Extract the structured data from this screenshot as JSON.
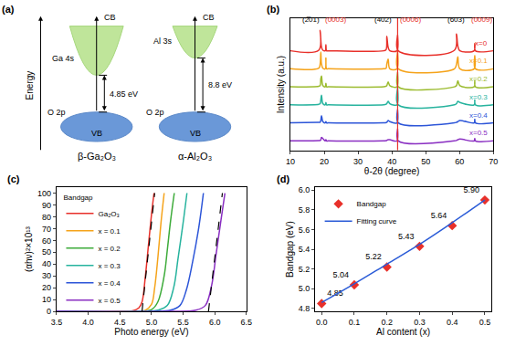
{
  "diagram": {
    "panel": "(a)",
    "axis_label": "Energy",
    "materials": [
      {
        "name": "β-Ga₂O₃",
        "cb": "CB",
        "vb": "VB",
        "cb_orbital": "Ga 4s",
        "vb_orbital": "O 2p",
        "gap": "4.85 eV"
      },
      {
        "name": "α-Al₂O₃",
        "cb": "CB",
        "vb": "VB",
        "cb_orbital": "Al 3s",
        "vb_orbital": "O 2p",
        "gap": "8.8 eV"
      }
    ]
  },
  "chart_data": [
    {
      "type": "line",
      "panel": "(b)",
      "xlabel": "θ-2θ (degree)",
      "ylabel": "Intensity (a.u.)",
      "tick_labels": "x",
      "grid": false,
      "xlim": [
        10,
        70
      ],
      "xticks": [
        10,
        20,
        30,
        40,
        50,
        60,
        70
      ],
      "ylim": [
        0,
        110
      ],
      "x": [
        10,
        18.4,
        18.8,
        19.0,
        19.2,
        19.6,
        20.3,
        20.5,
        20.7,
        21.2,
        37.6,
        38.3,
        38.5,
        38.9,
        39.4,
        41.5,
        41.7,
        41.9,
        58.5,
        59.1,
        59.5,
        60.1,
        64.3,
        64.5,
        64.7,
        70
      ],
      "series": [
        {
          "name": "x=0",
          "color": "#e8302a",
          "values": [
            83,
            83.5,
            100,
            92,
            86,
            83.5,
            83,
            88,
            83,
            83,
            83,
            84,
            95,
            86,
            83,
            83,
            96,
            83,
            83.5,
            97,
            87,
            83,
            83,
            89,
            83,
            83
          ]
        },
        {
          "name": "x=0.1",
          "color": "#f5a31a",
          "values": [
            68,
            68.5,
            72,
            82,
            72,
            68.5,
            68,
            77,
            68,
            68,
            68,
            68.5,
            72,
            76,
            68,
            68,
            82,
            68,
            68,
            72,
            78,
            68,
            68,
            79,
            68,
            68
          ]
        },
        {
          "name": "x=0.2",
          "color": "#9bbb2e",
          "values": [
            53,
            53.5,
            54,
            60,
            62,
            54,
            53,
            56,
            53,
            53,
            53,
            53.5,
            54,
            57,
            54,
            53,
            65,
            53,
            53,
            54,
            58,
            54,
            53,
            58,
            53,
            53
          ]
        },
        {
          "name": "x=0.3",
          "color": "#27b39e",
          "values": [
            38,
            38.5,
            39,
            42,
            46,
            39,
            38,
            40,
            38,
            38,
            38,
            38.5,
            39,
            41,
            39,
            38,
            52,
            38,
            38,
            39,
            41,
            40,
            38,
            42,
            38,
            38
          ]
        },
        {
          "name": "x=0.4",
          "color": "#2c55d8",
          "values": [
            23,
            23.5,
            23.5,
            25,
            29,
            24,
            23,
            24,
            23,
            23,
            23,
            23.2,
            23.5,
            25,
            24,
            23,
            34,
            23,
            23,
            23.5,
            24,
            25,
            23,
            26,
            23,
            23
          ]
        },
        {
          "name": "x=0.5",
          "color": "#8a2fc2",
          "values": [
            8,
            8.3,
            8.4,
            9,
            11,
            10,
            8,
            9,
            8,
            8,
            8,
            8.2,
            8.4,
            9,
            9,
            8,
            18,
            8,
            8,
            8.4,
            9,
            9.5,
            8,
            10,
            8,
            8
          ]
        }
      ],
      "annotations": [
        {
          "text": "(2̅01)",
          "x": 16,
          "y": 104,
          "color": "#000000"
        },
        {
          "text": "(0003)",
          "x": 23.5,
          "y": 104,
          "color": "#e8302a"
        },
        {
          "text": "(402)",
          "x": 37.5,
          "y": 104,
          "color": "#000000"
        },
        {
          "text": "(0006)",
          "x": 45.5,
          "y": 104,
          "color": "#e8302a"
        },
        {
          "text": "(603)",
          "x": 59,
          "y": 104,
          "color": "#000000"
        },
        {
          "text": "(0009)",
          "x": 66.5,
          "y": 104,
          "color": "#e8302a"
        }
      ],
      "reference_line": {
        "x": 41.7,
        "color": "#e8302a"
      }
    },
    {
      "type": "line",
      "panel": "(c)",
      "xlabel": "Photo energy (eV)",
      "ylabel": "(αhν)²×10¹³",
      "grid": false,
      "legend": "upper left",
      "legend_title": "Bandgap",
      "xlim": [
        3.5,
        6.5
      ],
      "xticks": [
        3.5,
        {
          "value": 4,
          "label": "4.0"
        },
        4.5,
        {
          "value": 5,
          "label": "5.0"
        },
        5.5,
        {
          "value": 6,
          "label": "6.0"
        },
        6.5
      ],
      "ylim": [
        0,
        105
      ],
      "yticks": [
        0,
        10,
        20,
        30,
        40,
        50,
        60,
        70,
        80,
        90,
        100
      ],
      "series": [
        {
          "name": "Ga₂O₃",
          "color": "#e8302a",
          "x": [
            3.5,
            4.5,
            4.7,
            4.8,
            4.85,
            4.9,
            4.95,
            5.0,
            5.04
          ],
          "values": [
            0,
            0,
            0.5,
            3,
            8,
            28,
            55,
            82,
            100
          ]
        },
        {
          "name": "x = 0.1",
          "color": "#f5a31a",
          "x": [
            3.5,
            4.7,
            4.9,
            5.0,
            5.05,
            5.1,
            5.15,
            5.2
          ],
          "values": [
            0,
            0,
            1,
            6,
            20,
            45,
            75,
            100
          ]
        },
        {
          "name": "x = 0.2",
          "color": "#3dab3a",
          "x": [
            3.5,
            4.8,
            5.0,
            5.1,
            5.2,
            5.25,
            5.3,
            5.36
          ],
          "values": [
            0,
            0,
            1.5,
            8,
            30,
            52,
            76,
            100
          ]
        },
        {
          "name": "x = 0.3",
          "color": "#27b39e",
          "x": [
            3.5,
            4.9,
            5.1,
            5.25,
            5.35,
            5.42,
            5.5,
            5.56
          ],
          "values": [
            0,
            0,
            1,
            5,
            20,
            45,
            75,
            100
          ]
        },
        {
          "name": "x = 0.4",
          "color": "#2c55d8",
          "x": [
            3.5,
            5.0,
            5.3,
            5.45,
            5.55,
            5.65,
            5.75,
            5.82
          ],
          "values": [
            0,
            0,
            1,
            5,
            18,
            42,
            72,
            100
          ]
        },
        {
          "name": "x = 0.5",
          "color": "#8a2fc2",
          "x": [
            3.5,
            5.3,
            5.7,
            5.85,
            5.95,
            6.02,
            6.1,
            6.16
          ],
          "values": [
            0,
            0,
            1,
            5,
            22,
            48,
            78,
            100
          ]
        }
      ],
      "fits": [
        {
          "x": [
            4.85,
            5.05
          ],
          "values": [
            0,
            100
          ],
          "color": "#000000",
          "line_style": "dashed"
        },
        {
          "x": [
            5.9,
            6.12
          ],
          "values": [
            0,
            100
          ],
          "color": "#000000",
          "line_style": "dashed"
        }
      ]
    },
    {
      "type": "scatter",
      "panel": "(d)",
      "xlabel": "Al content (x)",
      "ylabel": "Bandgap (eV)",
      "grid": false,
      "legend": "upper left",
      "xlim": [
        -0.02,
        0.52
      ],
      "xticks": [
        {
          "value": 0,
          "label": "0.0"
        },
        0.1,
        0.2,
        0.3,
        0.4,
        0.5
      ],
      "ylim": [
        4.77,
        6.03
      ],
      "yticks": [
        4.8,
        {
          "value": 5,
          "label": "5.0"
        },
        5.2,
        5.4,
        5.6,
        5.8,
        {
          "value": 6,
          "label": "6.0"
        }
      ],
      "x": [
        0,
        0.1,
        0.2,
        0.3,
        0.4,
        0.5
      ],
      "series": [
        {
          "name": "Bandgap",
          "type": "scatter",
          "marker": "diamond",
          "color": "#e8302a",
          "data_labels": true,
          "values": [
            4.85,
            5.04,
            5.22,
            5.43,
            5.64,
            5.9
          ],
          "value_labels": [
            "4.85",
            "5.04",
            "5.22",
            "5.43",
            "5.64",
            "5.90"
          ]
        },
        {
          "name": "Fitting curve",
          "type": "line",
          "line_style": "solid",
          "color": "#2a5bd7",
          "values": [
            4.86,
            5.05,
            5.25,
            5.45,
            5.67,
            5.9
          ]
        }
      ]
    }
  ]
}
